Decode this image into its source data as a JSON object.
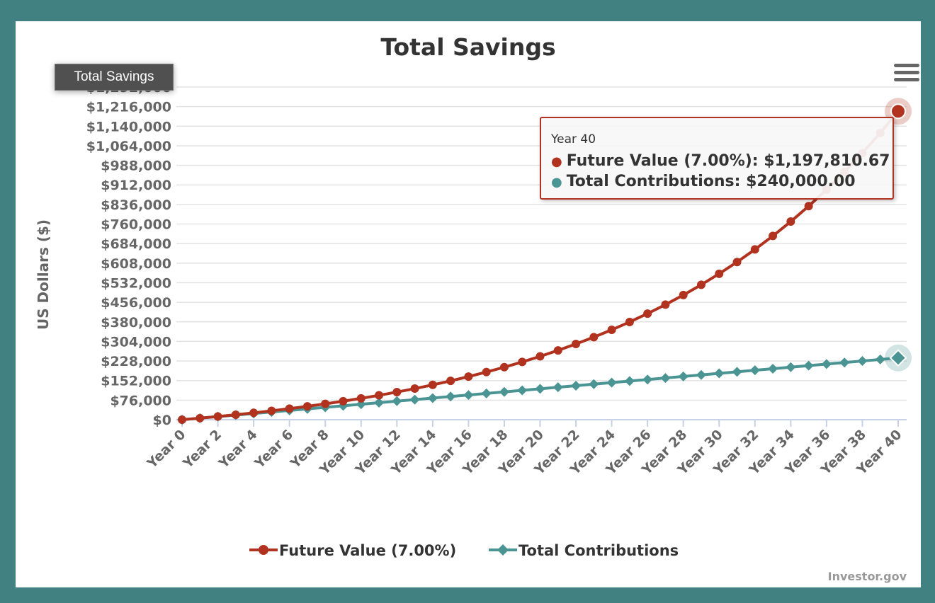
{
  "export_button": "Total Savings",
  "menu_icon": "hamburger-menu-icon",
  "credit": "Investor.gov",
  "tooltip": {
    "header": "Year 40",
    "rows": [
      {
        "label": "Future Value (7.00%):",
        "value": "$1,197,810.67",
        "color": "#b0321f"
      },
      {
        "label": "Total Contributions:",
        "value": "$240,000.00",
        "color": "#4a9494"
      }
    ]
  },
  "chart_data": {
    "type": "line",
    "title": "Total Savings",
    "ylabel": "US Dollars ($)",
    "xlabel": "",
    "ylim": [
      0,
      1292000
    ],
    "yticks": [
      "$0",
      "$76,000",
      "$152,000",
      "$228,000",
      "$304,000",
      "$380,000",
      "$456,000",
      "$532,000",
      "$608,000",
      "$684,000",
      "$760,000",
      "$836,000",
      "$912,000",
      "$988,000",
      "$1,064,000",
      "$1,140,000",
      "$1,216,000",
      "$1,292,000"
    ],
    "ytick_values": [
      0,
      76000,
      152000,
      228000,
      304000,
      380000,
      456000,
      532000,
      608000,
      684000,
      760000,
      836000,
      912000,
      988000,
      1064000,
      1140000,
      1216000,
      1292000
    ],
    "categories": [
      "Year 0",
      "Year 1",
      "Year 2",
      "Year 3",
      "Year 4",
      "Year 5",
      "Year 6",
      "Year 7",
      "Year 8",
      "Year 9",
      "Year 10",
      "Year 11",
      "Year 12",
      "Year 13",
      "Year 14",
      "Year 15",
      "Year 16",
      "Year 17",
      "Year 18",
      "Year 19",
      "Year 20",
      "Year 21",
      "Year 22",
      "Year 23",
      "Year 24",
      "Year 25",
      "Year 26",
      "Year 27",
      "Year 28",
      "Year 29",
      "Year 30",
      "Year 31",
      "Year 32",
      "Year 33",
      "Year 34",
      "Year 35",
      "Year 36",
      "Year 37",
      "Year 38",
      "Year 39",
      "Year 40"
    ],
    "xtick_labels_shown": [
      "Year 0",
      "Year 2",
      "Year 4",
      "Year 6",
      "Year 8",
      "Year 10",
      "Year 12",
      "Year 14",
      "Year 16",
      "Year 18",
      "Year 20",
      "Year 22",
      "Year 24",
      "Year 26",
      "Year 28",
      "Year 30",
      "Year 32",
      "Year 34",
      "Year 36",
      "Year 38",
      "Year 40"
    ],
    "grid": true,
    "legend_position": "bottom",
    "series": [
      {
        "name": "Future Value (7.00%)",
        "color": "#b0321f",
        "marker": "circle",
        "values": [
          0,
          6000,
          12420,
          19289.4,
          26639.66,
          34504.43,
          42919.74,
          51924.13,
          61558.82,
          71867.93,
          82898.69,
          94701.6,
          107330.71,
          120843.86,
          135302.93,
          150774.13,
          167328.32,
          185041.3,
          203994.19,
          224273.79,
          245972.95,
          269191.06,
          294034.43,
          320616.85,
          349060.02,
          379494.23,
          412058.82,
          446902.94,
          484186.15,
          524079.18,
          566764.72,
          612438.25,
          661308.93,
          713600.55,
          769552.59,
          829421.27,
          893480.76,
          962024.41,
          1035366.12,
          1113841.75,
          1197810.67
        ]
      },
      {
        "name": "Total Contributions",
        "color": "#4a9494",
        "marker": "diamond",
        "values": [
          0,
          6000,
          12000,
          18000,
          24000,
          30000,
          36000,
          42000,
          48000,
          54000,
          60000,
          66000,
          72000,
          78000,
          84000,
          90000,
          96000,
          102000,
          108000,
          114000,
          120000,
          126000,
          132000,
          138000,
          144000,
          150000,
          156000,
          162000,
          168000,
          174000,
          180000,
          186000,
          192000,
          198000,
          204000,
          210000,
          216000,
          222000,
          228000,
          234000,
          240000
        ]
      }
    ],
    "highlighted_category": "Year 40"
  }
}
